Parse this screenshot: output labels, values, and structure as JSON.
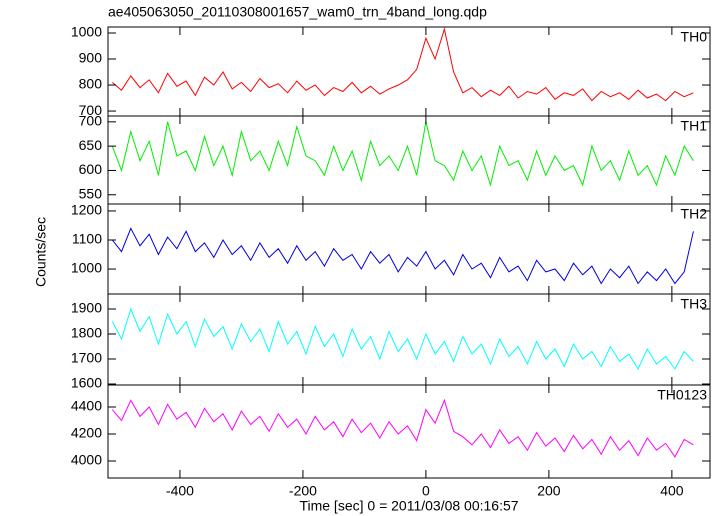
{
  "title": "ae405063050_20110308001657_wam0_trn_4band_long.qdp",
  "xlabel": "Time [sec] 0 = 2011/03/08 00:16:57",
  "ylabel": "Counts/sec",
  "chart_data": [
    {
      "type": "line",
      "x": [
        -510,
        -495,
        -480,
        -465,
        -450,
        -435,
        -420,
        -405,
        -390,
        -375,
        -360,
        -345,
        -330,
        -315,
        -300,
        -285,
        -270,
        -255,
        -240,
        -225,
        -210,
        -195,
        -180,
        -165,
        -150,
        -135,
        -120,
        -105,
        -90,
        -75,
        -60,
        -45,
        -30,
        -15,
        0,
        15,
        30,
        45,
        60,
        75,
        90,
        105,
        120,
        135,
        150,
        165,
        180,
        195,
        210,
        225,
        240,
        255,
        270,
        285,
        300,
        315,
        330,
        345,
        360,
        375,
        390,
        405,
        420,
        435
      ],
      "series": [
        {
          "name": "TH0",
          "color": "#ff0000",
          "values": [
            810,
            780,
            835,
            790,
            820,
            770,
            845,
            795,
            815,
            760,
            830,
            800,
            850,
            785,
            810,
            775,
            825,
            790,
            805,
            770,
            815,
            780,
            800,
            760,
            790,
            775,
            810,
            770,
            795,
            765,
            785,
            800,
            820,
            860,
            980,
            900,
            1015,
            850,
            770,
            790,
            755,
            780,
            760,
            795,
            750,
            775,
            765,
            790,
            745,
            770,
            760,
            785,
            740,
            775,
            755,
            770,
            745,
            780,
            750,
            765,
            740,
            775,
            755,
            770
          ]
        }
      ],
      "xlim": [
        -517,
        462
      ],
      "xticks": [
        -400,
        -200,
        0,
        200,
        400
      ],
      "ylim": [
        681,
        1023
      ],
      "yticks": [
        700,
        800,
        900,
        1000
      ]
    },
    {
      "type": "line",
      "x": [
        -510,
        -495,
        -480,
        -465,
        -450,
        -435,
        -420,
        -405,
        -390,
        -375,
        -360,
        -345,
        -330,
        -315,
        -300,
        -285,
        -270,
        -255,
        -240,
        -225,
        -210,
        -195,
        -180,
        -165,
        -150,
        -135,
        -120,
        -105,
        -90,
        -75,
        -60,
        -45,
        -30,
        -15,
        0,
        15,
        30,
        45,
        60,
        75,
        90,
        105,
        120,
        135,
        150,
        165,
        180,
        195,
        210,
        225,
        240,
        255,
        270,
        285,
        300,
        315,
        330,
        345,
        360,
        375,
        390,
        405,
        420,
        435
      ],
      "series": [
        {
          "name": "TH1",
          "color": "#00ee00",
          "values": [
            650,
            600,
            680,
            620,
            660,
            590,
            700,
            630,
            640,
            600,
            670,
            610,
            650,
            590,
            680,
            620,
            640,
            600,
            660,
            610,
            690,
            630,
            620,
            590,
            650,
            600,
            640,
            580,
            660,
            610,
            630,
            600,
            650,
            590,
            700,
            620,
            610,
            580,
            640,
            600,
            630,
            570,
            650,
            610,
            620,
            580,
            640,
            590,
            630,
            600,
            610,
            570,
            650,
            600,
            620,
            580,
            640,
            590,
            610,
            570,
            630,
            590,
            650,
            620
          ]
        }
      ],
      "xlim": [
        -517,
        462
      ],
      "xticks": [
        -400,
        -200,
        0,
        200,
        400
      ],
      "ylim": [
        531,
        712
      ],
      "yticks": [
        550,
        600,
        650,
        700
      ]
    },
    {
      "type": "line",
      "x": [
        -510,
        -495,
        -480,
        -465,
        -450,
        -435,
        -420,
        -405,
        -390,
        -375,
        -360,
        -345,
        -330,
        -315,
        -300,
        -285,
        -270,
        -255,
        -240,
        -225,
        -210,
        -195,
        -180,
        -165,
        -150,
        -135,
        -120,
        -105,
        -90,
        -75,
        -60,
        -45,
        -30,
        -15,
        0,
        15,
        30,
        45,
        60,
        75,
        90,
        105,
        120,
        135,
        150,
        165,
        180,
        195,
        210,
        225,
        240,
        255,
        270,
        285,
        300,
        315,
        330,
        345,
        360,
        375,
        390,
        405,
        420,
        435
      ],
      "series": [
        {
          "name": "TH2",
          "color": "#0000e0",
          "values": [
            1100,
            1060,
            1140,
            1080,
            1120,
            1050,
            1110,
            1070,
            1130,
            1060,
            1090,
            1040,
            1100,
            1050,
            1080,
            1030,
            1090,
            1040,
            1070,
            1020,
            1080,
            1030,
            1060,
            1010,
            1070,
            1030,
            1050,
            1000,
            1060,
            1020,
            1050,
            990,
            1040,
            1010,
            1060,
            1000,
            1030,
            980,
            1050,
            1000,
            1020,
            970,
            1040,
            990,
            1010,
            960,
            1030,
            990,
            1000,
            960,
            1020,
            980,
            1010,
            950,
            1000,
            970,
            1010,
            950,
            990,
            960,
            1000,
            950,
            990,
            1130
          ]
        }
      ],
      "xlim": [
        -517,
        462
      ],
      "xticks": [
        -400,
        -200,
        0,
        200,
        400
      ],
      "ylim": [
        914,
        1224
      ],
      "yticks": [
        1000,
        1100,
        1200
      ]
    },
    {
      "type": "line",
      "x": [
        -510,
        -495,
        -480,
        -465,
        -450,
        -435,
        -420,
        -405,
        -390,
        -375,
        -360,
        -345,
        -330,
        -315,
        -300,
        -285,
        -270,
        -255,
        -240,
        -225,
        -210,
        -195,
        -180,
        -165,
        -150,
        -135,
        -120,
        -105,
        -90,
        -75,
        -60,
        -45,
        -30,
        -15,
        0,
        15,
        30,
        45,
        60,
        75,
        90,
        105,
        120,
        135,
        150,
        165,
        180,
        195,
        210,
        225,
        240,
        255,
        270,
        285,
        300,
        315,
        330,
        345,
        360,
        375,
        390,
        405,
        420,
        435
      ],
      "series": [
        {
          "name": "TH3",
          "color": "#00ffff",
          "values": [
            1850,
            1780,
            1900,
            1810,
            1870,
            1760,
            1880,
            1800,
            1850,
            1750,
            1860,
            1790,
            1830,
            1740,
            1840,
            1770,
            1820,
            1730,
            1850,
            1760,
            1810,
            1720,
            1830,
            1750,
            1800,
            1710,
            1820,
            1740,
            1790,
            1700,
            1810,
            1730,
            1780,
            1700,
            1800,
            1720,
            1770,
            1690,
            1790,
            1720,
            1760,
            1680,
            1780,
            1710,
            1750,
            1680,
            1770,
            1700,
            1740,
            1670,
            1760,
            1700,
            1730,
            1670,
            1750,
            1690,
            1720,
            1660,
            1740,
            1680,
            1710,
            1660,
            1730,
            1690
          ]
        }
      ],
      "xlim": [
        -517,
        462
      ],
      "xticks": [
        -400,
        -200,
        0,
        200,
        400
      ],
      "ylim": [
        1596,
        1960
      ],
      "yticks": [
        1600,
        1700,
        1800,
        1900
      ]
    },
    {
      "type": "line",
      "x": [
        -510,
        -495,
        -480,
        -465,
        -450,
        -435,
        -420,
        -405,
        -390,
        -375,
        -360,
        -345,
        -330,
        -315,
        -300,
        -285,
        -270,
        -255,
        -240,
        -225,
        -210,
        -195,
        -180,
        -165,
        -150,
        -135,
        -120,
        -105,
        -90,
        -75,
        -60,
        -45,
        -30,
        -15,
        0,
        15,
        30,
        45,
        60,
        75,
        90,
        105,
        120,
        135,
        150,
        165,
        180,
        195,
        210,
        225,
        240,
        255,
        270,
        285,
        300,
        315,
        330,
        345,
        360,
        375,
        390,
        405,
        420,
        435
      ],
      "series": [
        {
          "name": "TH0123",
          "color": "#ff00ff",
          "values": [
            4380,
            4300,
            4450,
            4330,
            4400,
            4270,
            4420,
            4310,
            4360,
            4250,
            4390,
            4290,
            4350,
            4230,
            4370,
            4270,
            4330,
            4220,
            4350,
            4250,
            4310,
            4200,
            4330,
            4230,
            4290,
            4180,
            4310,
            4210,
            4280,
            4170,
            4290,
            4200,
            4260,
            4150,
            4380,
            4280,
            4450,
            4220,
            4180,
            4120,
            4200,
            4100,
            4230,
            4130,
            4180,
            4080,
            4210,
            4110,
            4170,
            4070,
            4190,
            4090,
            4160,
            4050,
            4180,
            4080,
            4150,
            4040,
            4170,
            4080,
            4130,
            4030,
            4160,
            4120
          ]
        }
      ],
      "xlim": [
        -517,
        462
      ],
      "xticks": [
        -400,
        -200,
        0,
        200,
        400
      ],
      "ylim": [
        3874,
        4563
      ],
      "yticks": [
        4000,
        4200,
        4400
      ]
    }
  ]
}
